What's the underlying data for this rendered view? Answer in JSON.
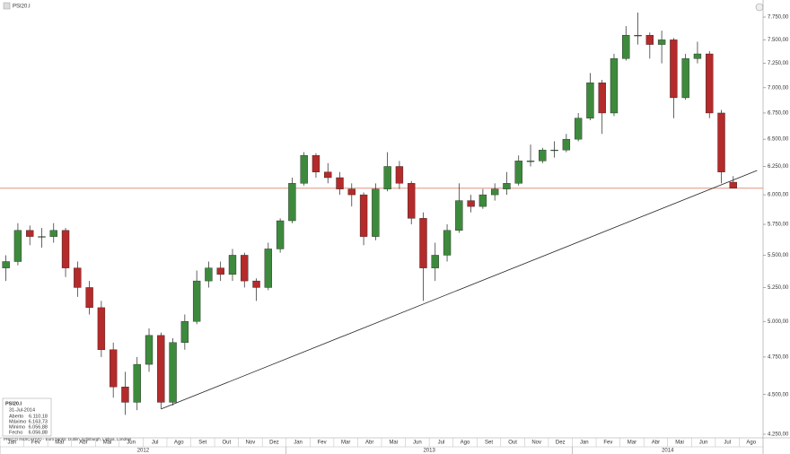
{
  "chart_data": {
    "type": "candlestick",
    "title": "PSI20.I",
    "categories": [
      "Jan",
      null,
      "Fev",
      null,
      "Mar",
      null,
      "Abr",
      null,
      "Mai",
      null,
      "Jun",
      null,
      "Jul",
      null,
      "Ago",
      null,
      "Set",
      null,
      "Out",
      null,
      "Nov",
      null,
      "Dez",
      null,
      "Jan",
      null,
      "Fev",
      null,
      "Mar",
      null,
      "Abr",
      null,
      "Mai",
      null,
      "Jun",
      null,
      "Jul",
      null,
      "Ago",
      null,
      "Set",
      null,
      "Out",
      null,
      "Nov",
      null,
      "Dez",
      null,
      "Jan",
      null,
      "Fev",
      null,
      "Mar",
      null,
      "Abr",
      null,
      "Mai",
      null,
      "Jun",
      null,
      "Jul",
      null,
      "Ago",
      null
    ],
    "years": [
      "2012",
      "2013",
      "2014"
    ],
    "open": [
      5400,
      5450,
      5700,
      5650,
      5650,
      5700,
      5400,
      5250,
      5100,
      4800,
      4550,
      4450,
      4700,
      4900,
      4450,
      4850,
      5000,
      5300,
      5400,
      5350,
      5500,
      5300,
      5250,
      5550,
      5780,
      6100,
      6350,
      6200,
      6150,
      6050,
      6000,
      5650,
      6050,
      6250,
      6100,
      5800,
      5400,
      5500,
      5700,
      5950,
      5900,
      6000,
      6050,
      6100,
      6300,
      6300,
      6400,
      6400,
      6500,
      6700,
      7050,
      6750,
      7300,
      7550,
      7550,
      7450,
      7500,
      6900,
      7300,
      7350,
      6750,
      6110.18,
      null,
      null
    ],
    "high": [
      5500,
      5760,
      5740,
      5720,
      5760,
      5720,
      5450,
      5300,
      5150,
      4850,
      4650,
      4750,
      4950,
      4920,
      4880,
      5050,
      5380,
      5450,
      5450,
      5550,
      5520,
      5320,
      5600,
      5800,
      6150,
      6380,
      6370,
      6280,
      6200,
      6100,
      6020,
      6100,
      6380,
      6300,
      6120,
      5850,
      5600,
      5750,
      6100,
      6000,
      6050,
      6100,
      6200,
      6350,
      6450,
      6420,
      6480,
      6550,
      6750,
      7150,
      7080,
      7350,
      7650,
      7800,
      7580,
      7600,
      7520,
      7350,
      7480,
      7380,
      6780,
      6163.73,
      null,
      null
    ],
    "low": [
      5300,
      5420,
      5580,
      5560,
      5600,
      5330,
      5180,
      5050,
      4750,
      4480,
      4370,
      4400,
      4650,
      4410,
      4430,
      4800,
      4980,
      5250,
      5300,
      5300,
      5250,
      5150,
      5230,
      5520,
      5760,
      6080,
      6150,
      6100,
      6000,
      5900,
      5580,
      5620,
      6030,
      6050,
      5750,
      5150,
      5300,
      5450,
      5680,
      5850,
      5880,
      5950,
      6000,
      6080,
      6250,
      6280,
      6330,
      6380,
      6480,
      6680,
      6550,
      6720,
      7280,
      7450,
      7300,
      7250,
      6700,
      6880,
      7250,
      6700,
      6100,
      6056.88,
      null,
      null
    ],
    "close": [
      5450,
      5700,
      5650,
      5650,
      5700,
      5400,
      5250,
      5100,
      4800,
      4550,
      4450,
      4700,
      4900,
      4450,
      4850,
      5000,
      5300,
      5400,
      5350,
      5500,
      5300,
      5250,
      5550,
      5780,
      6100,
      6350,
      6200,
      6150,
      6050,
      6000,
      5650,
      6050,
      6250,
      6100,
      5800,
      5400,
      5500,
      5700,
      5950,
      5900,
      6000,
      6050,
      6100,
      6300,
      6300,
      6400,
      6400,
      6500,
      6700,
      7050,
      6750,
      7300,
      7550,
      7550,
      7450,
      7500,
      6900,
      7300,
      7350,
      6750,
      6200,
      6056.88,
      null,
      null
    ],
    "up_color": "#3d8a3d",
    "down_color": "#b52a2a",
    "trendline": {
      "start_category": 13,
      "start_value": 4407,
      "end_category": 63,
      "end_value": 6214
    },
    "ylim": [
      4228,
      7943
    ],
    "log_scale": true,
    "yticks": [
      {
        "value": 4250,
        "label": "4.250,00"
      },
      {
        "value": 4500,
        "label": "4.500,00"
      },
      {
        "value": 4750,
        "label": "4.750,00"
      },
      {
        "value": 5000,
        "label": "5.000,00"
      },
      {
        "value": 5250,
        "label": "5.250,00"
      },
      {
        "value": 5500,
        "label": "5.500,00"
      },
      {
        "value": 5750,
        "label": "5.750,00"
      },
      {
        "value": 6000,
        "label": "6.000,00"
      },
      {
        "value": 6250,
        "label": "6.250,00"
      },
      {
        "value": 6500,
        "label": "6.500,00"
      },
      {
        "value": 6750,
        "label": "6.750,00"
      },
      {
        "value": 7000,
        "label": "7.000,00"
      },
      {
        "value": 7250,
        "label": "7.250,00"
      },
      {
        "value": 7500,
        "label": "7.500,00"
      },
      {
        "value": 7750,
        "label": "7.750,00"
      }
    ],
    "info": {
      "symbol": "PSI20.I",
      "date": "31-Jul-2014",
      "rows": [
        [
          "Aberto",
          "6.110,18"
        ],
        [
          "Máximo",
          "6.163,73"
        ],
        [
          "Mínimo",
          "6.056,88"
        ],
        [
          "Fecho",
          "6.056,88"
        ]
      ]
    },
    "footnote": "PREÇO INDICATIVO - Euro banks: Dublin, Edinburgh, Lisboa, Londres"
  }
}
